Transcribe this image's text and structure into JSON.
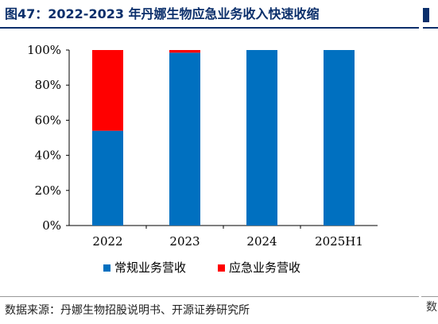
{
  "title": "图47：2022-2023 年丹娜生物应急业务收入快速收缩",
  "source": "数据来源：丹娜生物招股说明书、开源证券研究所",
  "right_stub_text": "数",
  "chart_data": {
    "type": "bar",
    "stacked": true,
    "categories": [
      "2022",
      "2023",
      "2024",
      "2025H1"
    ],
    "series": [
      {
        "name": "常规业务营收",
        "color": "#0070c0",
        "values": [
          54,
          98.5,
          100,
          100
        ]
      },
      {
        "name": "应急业务营收",
        "color": "#ff0000",
        "values": [
          46,
          1.5,
          0,
          0
        ]
      }
    ],
    "ylim": [
      0,
      100
    ],
    "yticks": [
      0,
      20,
      40,
      60,
      80,
      100
    ],
    "ytick_labels": [
      "0%",
      "20%",
      "40%",
      "60%",
      "80%",
      "100%"
    ],
    "grid": false,
    "legend": "bottom"
  }
}
